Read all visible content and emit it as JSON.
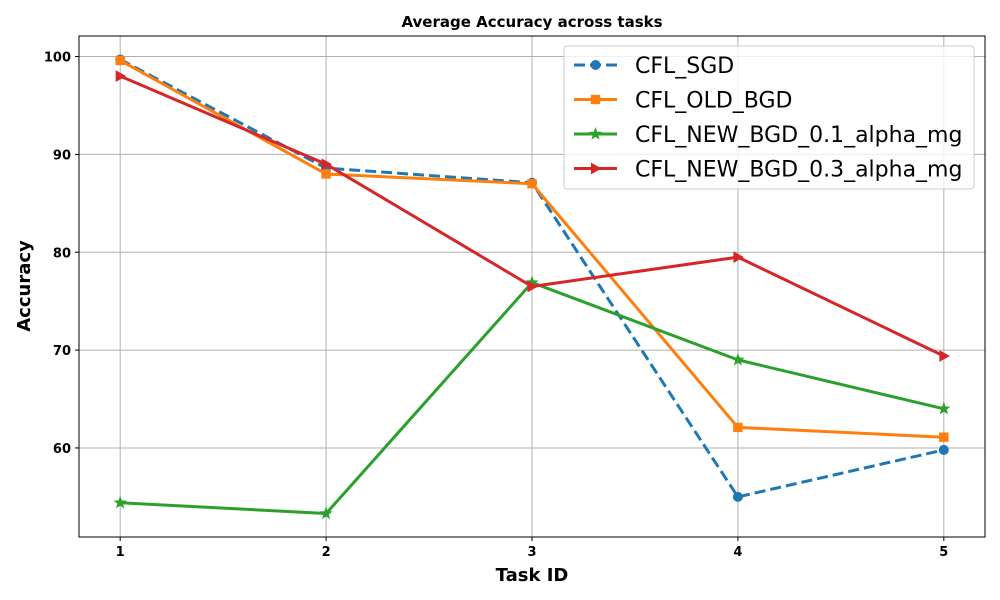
{
  "chart_data": {
    "type": "line",
    "title": "Average Accuracy across tasks",
    "xlabel": "Task ID",
    "ylabel": "Accuracy",
    "x": [
      1,
      2,
      3,
      4,
      5
    ],
    "x_ticks": [
      "1",
      "2",
      "3",
      "4",
      "5"
    ],
    "y_ticks": [
      "60",
      "70",
      "80",
      "90",
      "100"
    ],
    "xlim": [
      0.8,
      5.2
    ],
    "ylim": [
      50.9,
      102.1
    ],
    "grid": true,
    "legend_position": "top-right",
    "series": [
      {
        "name": "CFL_SGD",
        "values": [
          99.7,
          88.6,
          87.1,
          55.0,
          59.8
        ],
        "color": "#1f77b4",
        "marker": "circle",
        "line_style": "dashed"
      },
      {
        "name": "CFL_OLD_BGD",
        "values": [
          99.6,
          88.0,
          87.0,
          62.1,
          61.1
        ],
        "color": "#ff7f0e",
        "marker": "square",
        "line_style": "solid"
      },
      {
        "name": "CFL_NEW_BGD_0.1_alpha_mg",
        "values": [
          54.4,
          53.3,
          76.9,
          69.0,
          64.0
        ],
        "color": "#2ca02c",
        "marker": "star",
        "line_style": "solid"
      },
      {
        "name": "CFL_NEW_BGD_0.3_alpha_mg",
        "values": [
          98.0,
          89.0,
          76.5,
          79.5,
          69.4
        ],
        "color": "#d62728",
        "marker": "triangle-right",
        "line_style": "solid"
      }
    ]
  }
}
